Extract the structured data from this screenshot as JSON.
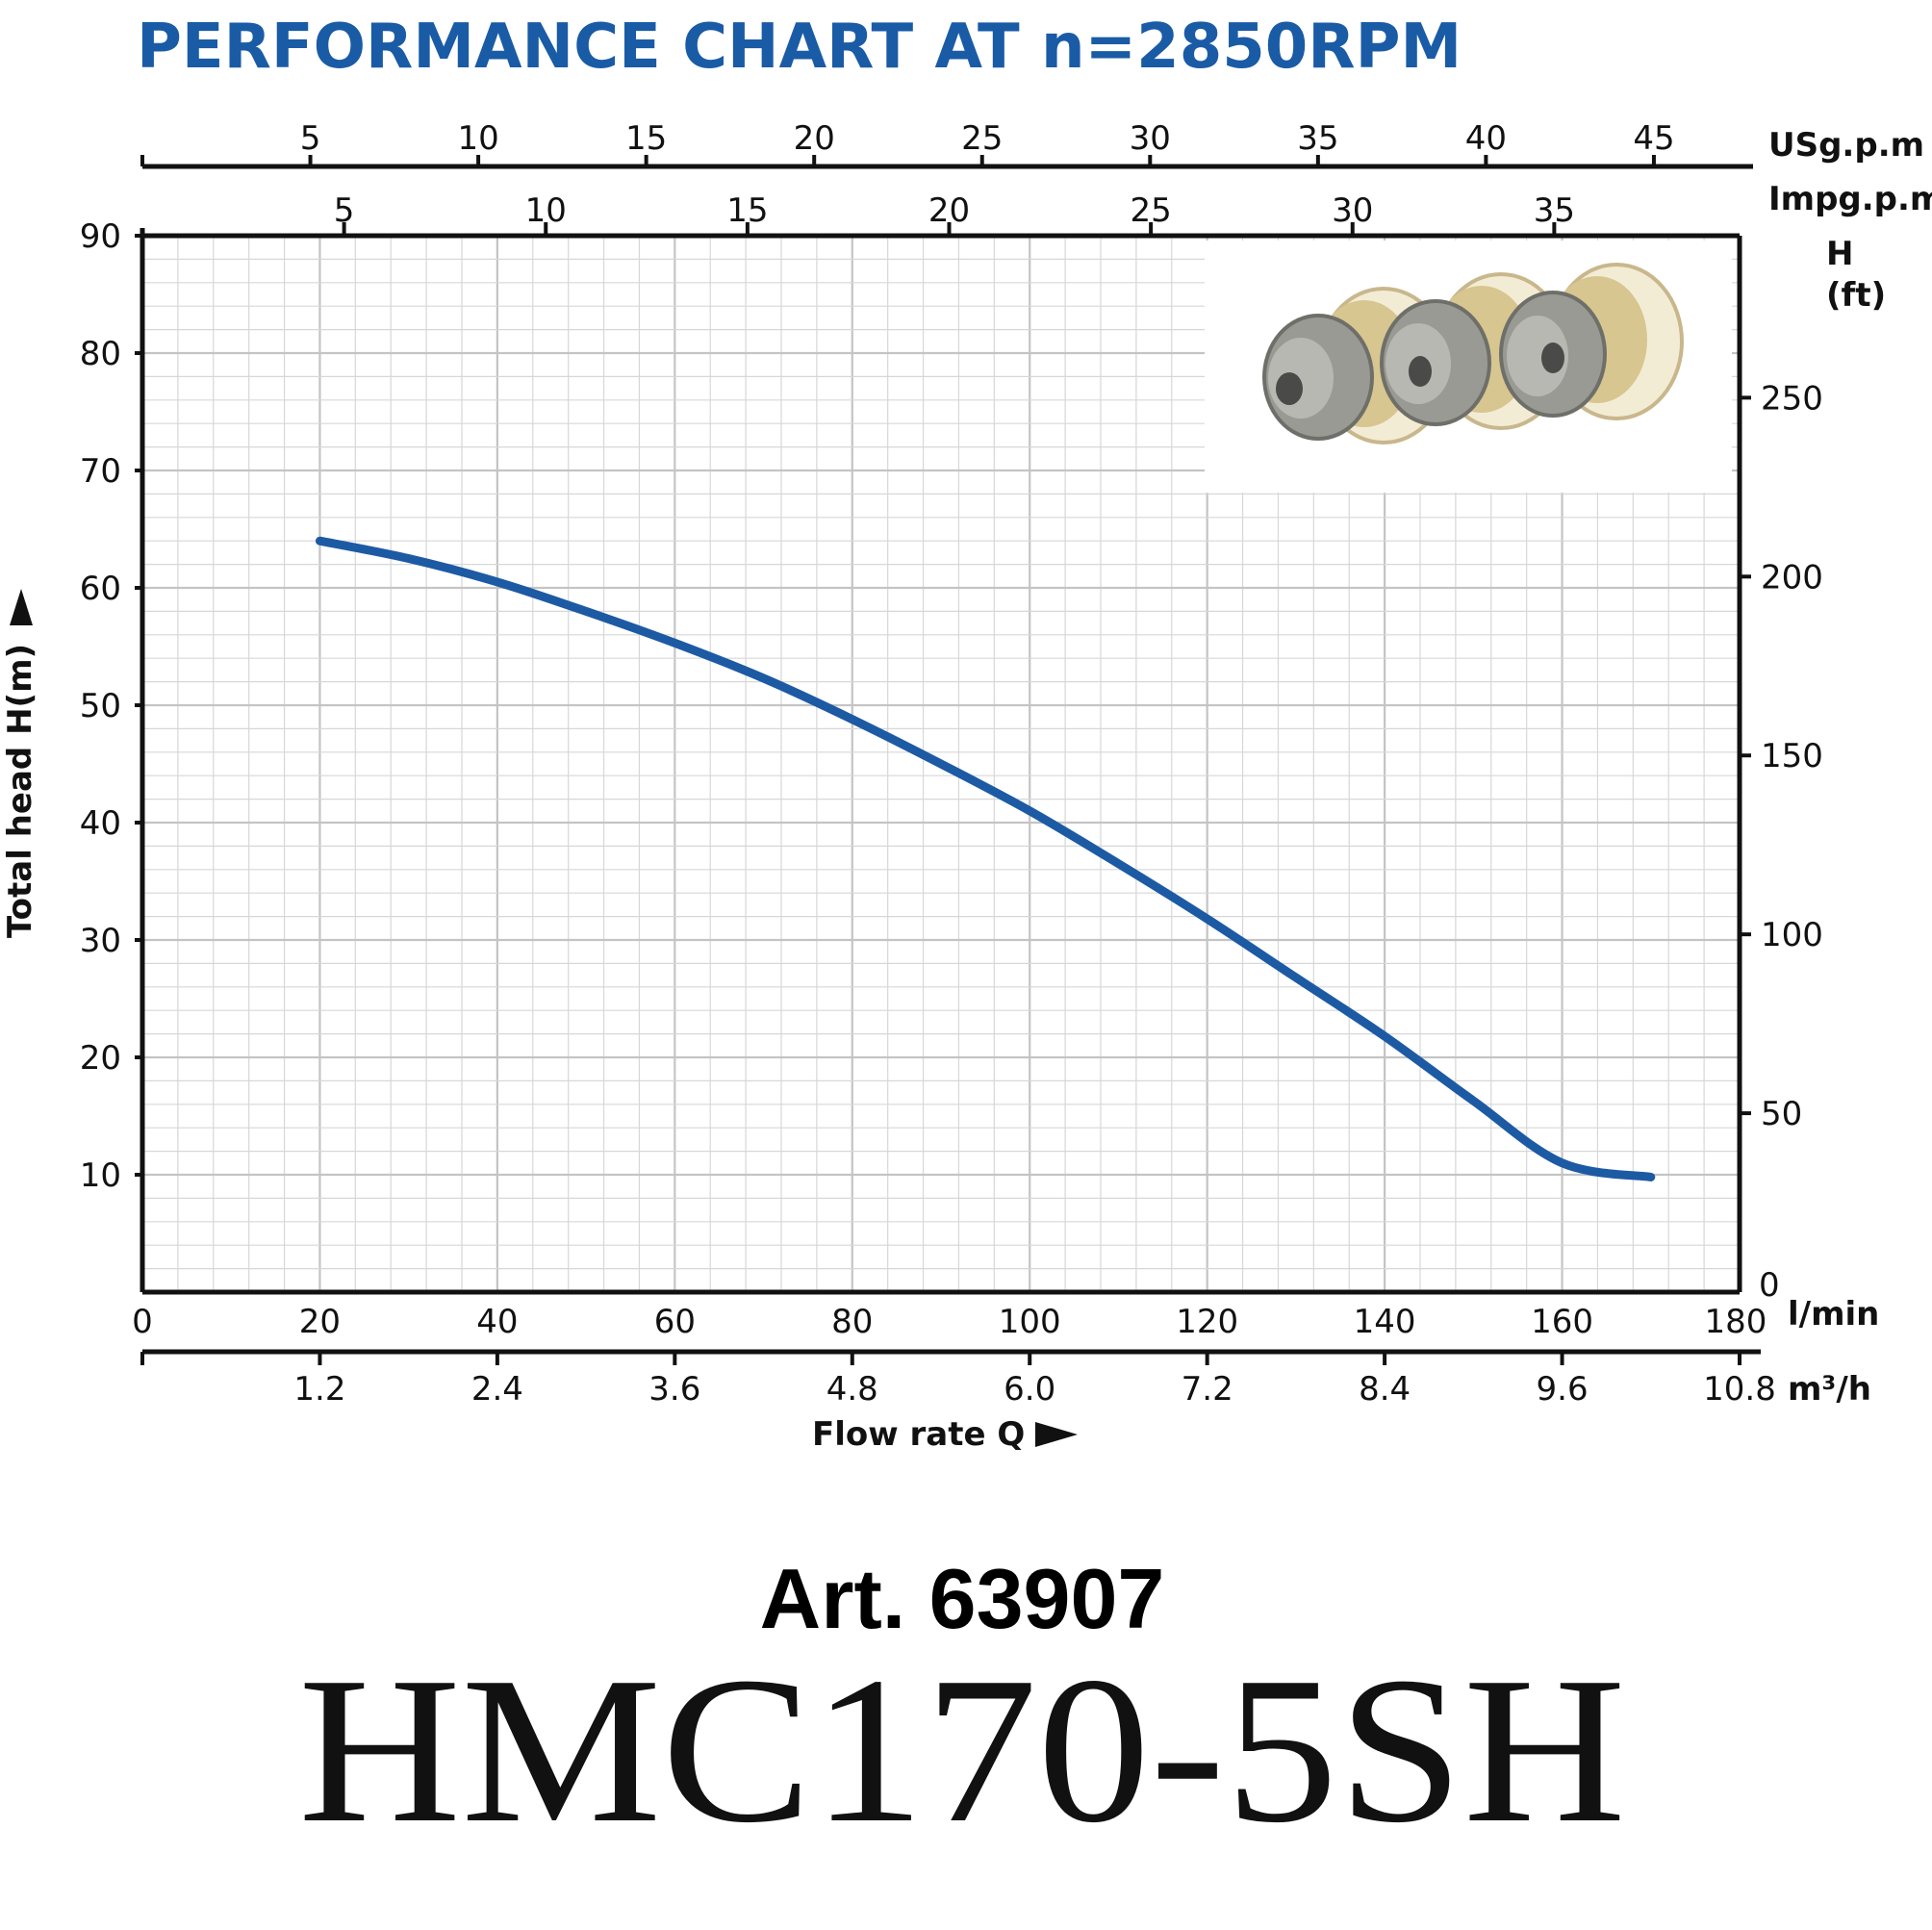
{
  "chart_data": {
    "type": "line",
    "title": "PERFORMANCE CHART AT n=2850RPM",
    "xlabel": "Flow rate Q",
    "ylabel": "Total  head H(m)",
    "x_unit": "l/min",
    "xlim": [
      0,
      180
    ],
    "ylim": [
      0,
      90
    ],
    "x_ticks": [
      0,
      20,
      40,
      60,
      80,
      100,
      120,
      140,
      160,
      180
    ],
    "y_ticks": [
      10,
      20,
      30,
      40,
      50,
      60,
      70,
      80,
      90
    ],
    "secondary_axes": {
      "m3h": {
        "unit": "m³/h",
        "ticks": [
          {
            "label": "1.2",
            "value": 1.2
          },
          {
            "label": "2.4",
            "value": 2.4
          },
          {
            "label": "3.6",
            "value": 3.6
          },
          {
            "label": "4.8",
            "value": 4.8
          },
          {
            "label": "6.0",
            "value": 6.0
          },
          {
            "label": "7.2",
            "value": 7.2
          },
          {
            "label": "8.4",
            "value": 8.4
          },
          {
            "label": "9.6",
            "value": 9.6
          },
          {
            "label": "10.8",
            "value": 10.8
          }
        ]
      },
      "usgpm": {
        "unit": "USg.p.m",
        "ticks": [
          5,
          10,
          15,
          20,
          25,
          30,
          35,
          40,
          45
        ]
      },
      "impgpm": {
        "unit": "Impg.p.m",
        "ticks": [
          5,
          10,
          15,
          20,
          25,
          30,
          35
        ]
      },
      "head_ft": {
        "unit_line1": "H",
        "unit_line2": "(ft)",
        "ticks": [
          0,
          50,
          100,
          150,
          200,
          250
        ]
      }
    },
    "series": [
      {
        "x": [
          20,
          30,
          40,
          50,
          60,
          70,
          80,
          90,
          100,
          110,
          120,
          130,
          140,
          150,
          160,
          170
        ],
        "y": [
          64,
          62.5,
          60.5,
          58,
          55.3,
          52.3,
          48.8,
          45,
          41,
          36.5,
          31.8,
          26.8,
          21.8,
          16.3,
          11,
          9.8
        ],
        "color": "#1d5aa4"
      }
    ],
    "grid": true
  },
  "footer": {
    "article": "Art. 63907",
    "model": "HMC170-5SH"
  },
  "image": {
    "description_icon": "impeller-stack-photo"
  }
}
